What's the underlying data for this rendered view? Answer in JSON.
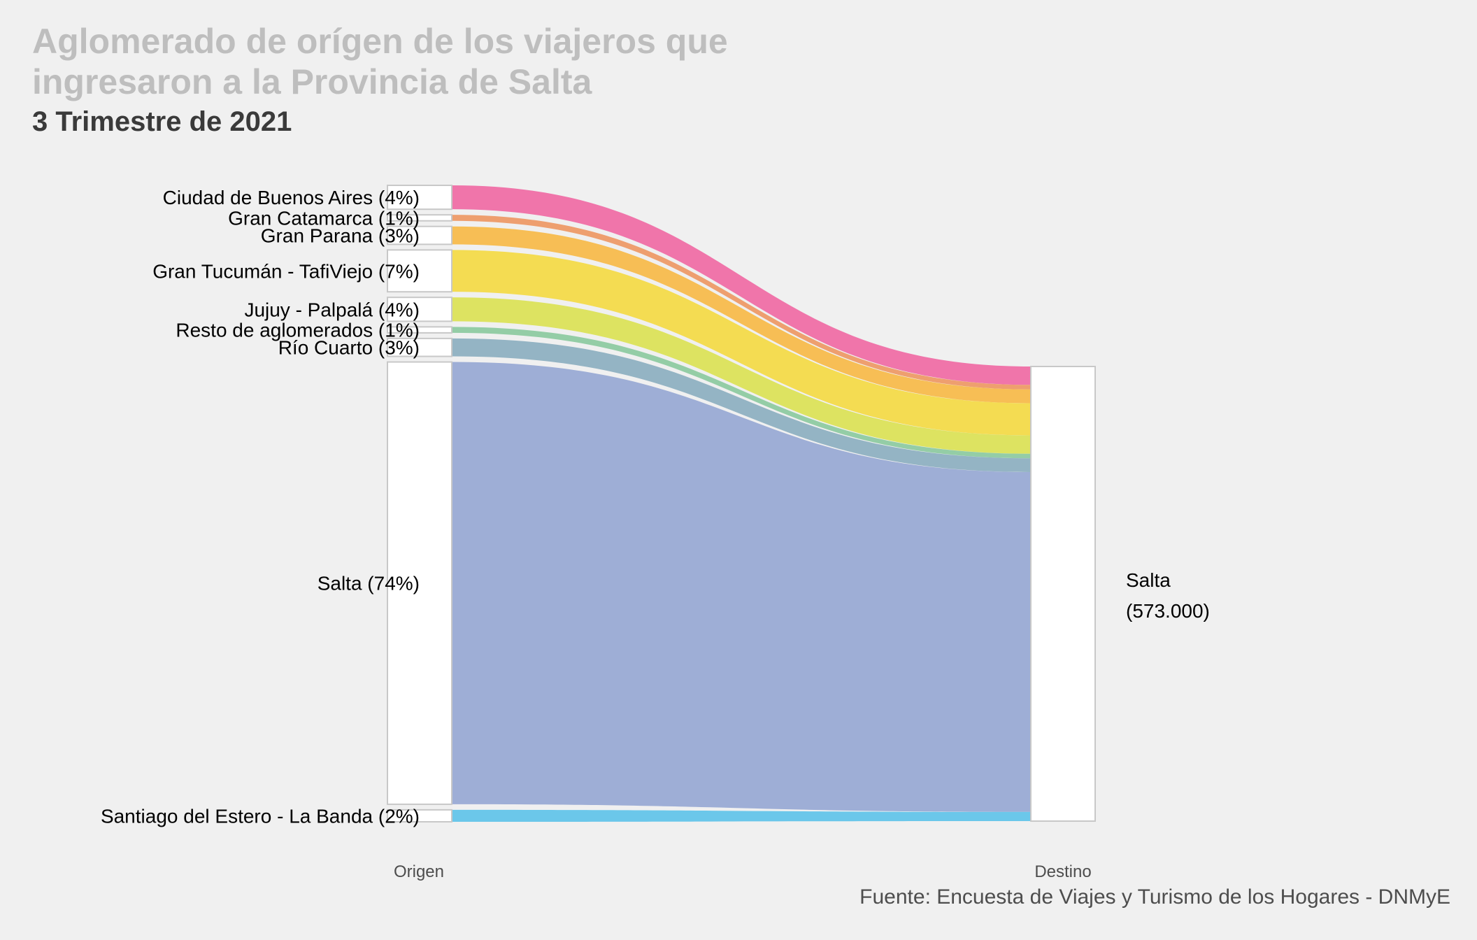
{
  "title": "Aglomerado de orígen de los viajeros que ingresaron a la Provincia de Salta",
  "title_lines": [
    "Aglomerado de orígen de los viajeros que",
    "ingresaron a la Provincia de Salta"
  ],
  "subtitle": "3 Trimestre de 2021",
  "caption": "Fuente: Encuesta de Viajes y Turismo de los Hogares - DNMyE",
  "chart_data": {
    "type": "sankey",
    "axis_labels": [
      "Origen",
      "Destino"
    ],
    "destination": {
      "label_lines": [
        "Salta",
        "(573.000)"
      ],
      "total": 573000
    },
    "flows": [
      {
        "label": "Ciudad de Buenos Aires (4%)",
        "percent": 4,
        "color": "#f075aa"
      },
      {
        "label": "Gran Catamarca (1%)",
        "percent": 1,
        "color": "#ee9f6f"
      },
      {
        "label": "Gran Parana (3%)",
        "percent": 3,
        "color": "#f7be55"
      },
      {
        "label": "Gran Tucumán - TafiViejo (7%)",
        "percent": 7,
        "color": "#f4dc52"
      },
      {
        "label": "Jujuy - Palpalá (4%)",
        "percent": 4,
        "color": "#dde361"
      },
      {
        "label": "Resto de aglomerados (1%)",
        "percent": 1,
        "color": "#94cda6"
      },
      {
        "label": "Río Cuarto (3%)",
        "percent": 3,
        "color": "#94b4c4"
      },
      {
        "label": "Salta (74%)",
        "percent": 74,
        "color": "#9eaed6"
      },
      {
        "label": "Santiago del Estero - La Banda (2%)",
        "percent": 2,
        "color": "#6bc7ea"
      }
    ]
  }
}
